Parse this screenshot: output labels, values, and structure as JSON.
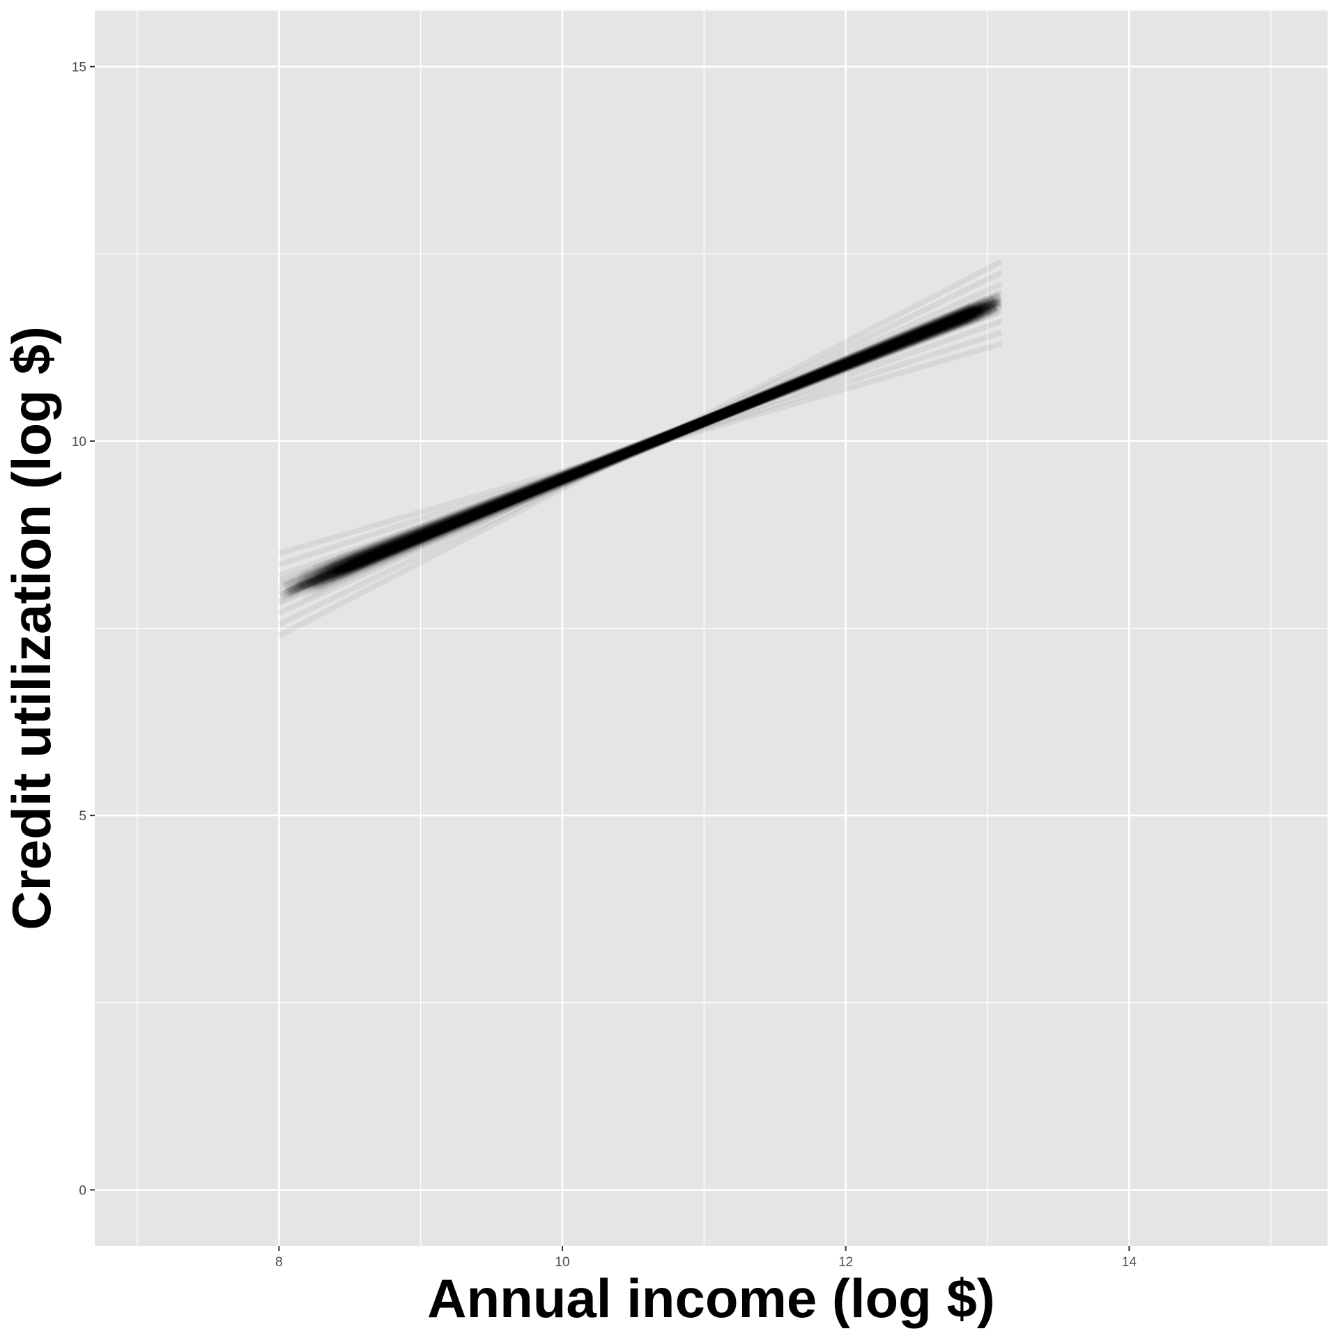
{
  "chart_data": {
    "type": "line",
    "title": "",
    "xlabel": "Annual income (log $)",
    "ylabel": "Credit utilization (log $)",
    "xlim": [
      6.7,
      15.4
    ],
    "ylim": [
      -0.75,
      15.75
    ],
    "x_ticks": [
      8,
      10,
      12,
      14
    ],
    "x_tick_labels": [
      "8",
      "10",
      "12",
      "14"
    ],
    "y_ticks": [
      0,
      5,
      10,
      15
    ],
    "y_tick_labels": [
      "0",
      "5",
      "10",
      "15"
    ],
    "grid": true,
    "legend": "none",
    "colors": {
      "panel_background": "#e5e5e5",
      "grid_line": "#ffffff",
      "line": "#000000"
    },
    "line_opacity": 0.03,
    "x_range_of_lines": [
      8.0,
      13.1
    ],
    "pivot": {
      "x": 11.0,
      "y": 10.26
    },
    "series": [
      {
        "values": [
          {
            "x": 8.0,
            "y": 7.95
          },
          {
            "x": 13.1,
            "y": 11.87
          }
        ]
      },
      {
        "values": [
          {
            "x": 8.0,
            "y": 7.7
          },
          {
            "x": 13.1,
            "y": 12.1
          }
        ]
      },
      {
        "values": [
          {
            "x": 8.0,
            "y": 8.2
          },
          {
            "x": 13.1,
            "y": 11.6
          }
        ]
      },
      {
        "values": [
          {
            "x": 8.0,
            "y": 7.55
          },
          {
            "x": 13.1,
            "y": 12.25
          }
        ]
      },
      {
        "values": [
          {
            "x": 8.0,
            "y": 8.35
          },
          {
            "x": 13.1,
            "y": 11.45
          }
        ]
      },
      {
        "values": [
          {
            "x": 8.0,
            "y": 7.85
          },
          {
            "x": 13.1,
            "y": 12.0
          }
        ]
      },
      {
        "values": [
          {
            "x": 8.0,
            "y": 8.05
          },
          {
            "x": 13.1,
            "y": 11.75
          }
        ]
      },
      {
        "values": [
          {
            "x": 8.0,
            "y": 7.4
          },
          {
            "x": 13.1,
            "y": 12.4
          }
        ]
      },
      {
        "values": [
          {
            "x": 8.0,
            "y": 8.5
          },
          {
            "x": 13.1,
            "y": 11.3
          }
        ]
      }
    ]
  }
}
